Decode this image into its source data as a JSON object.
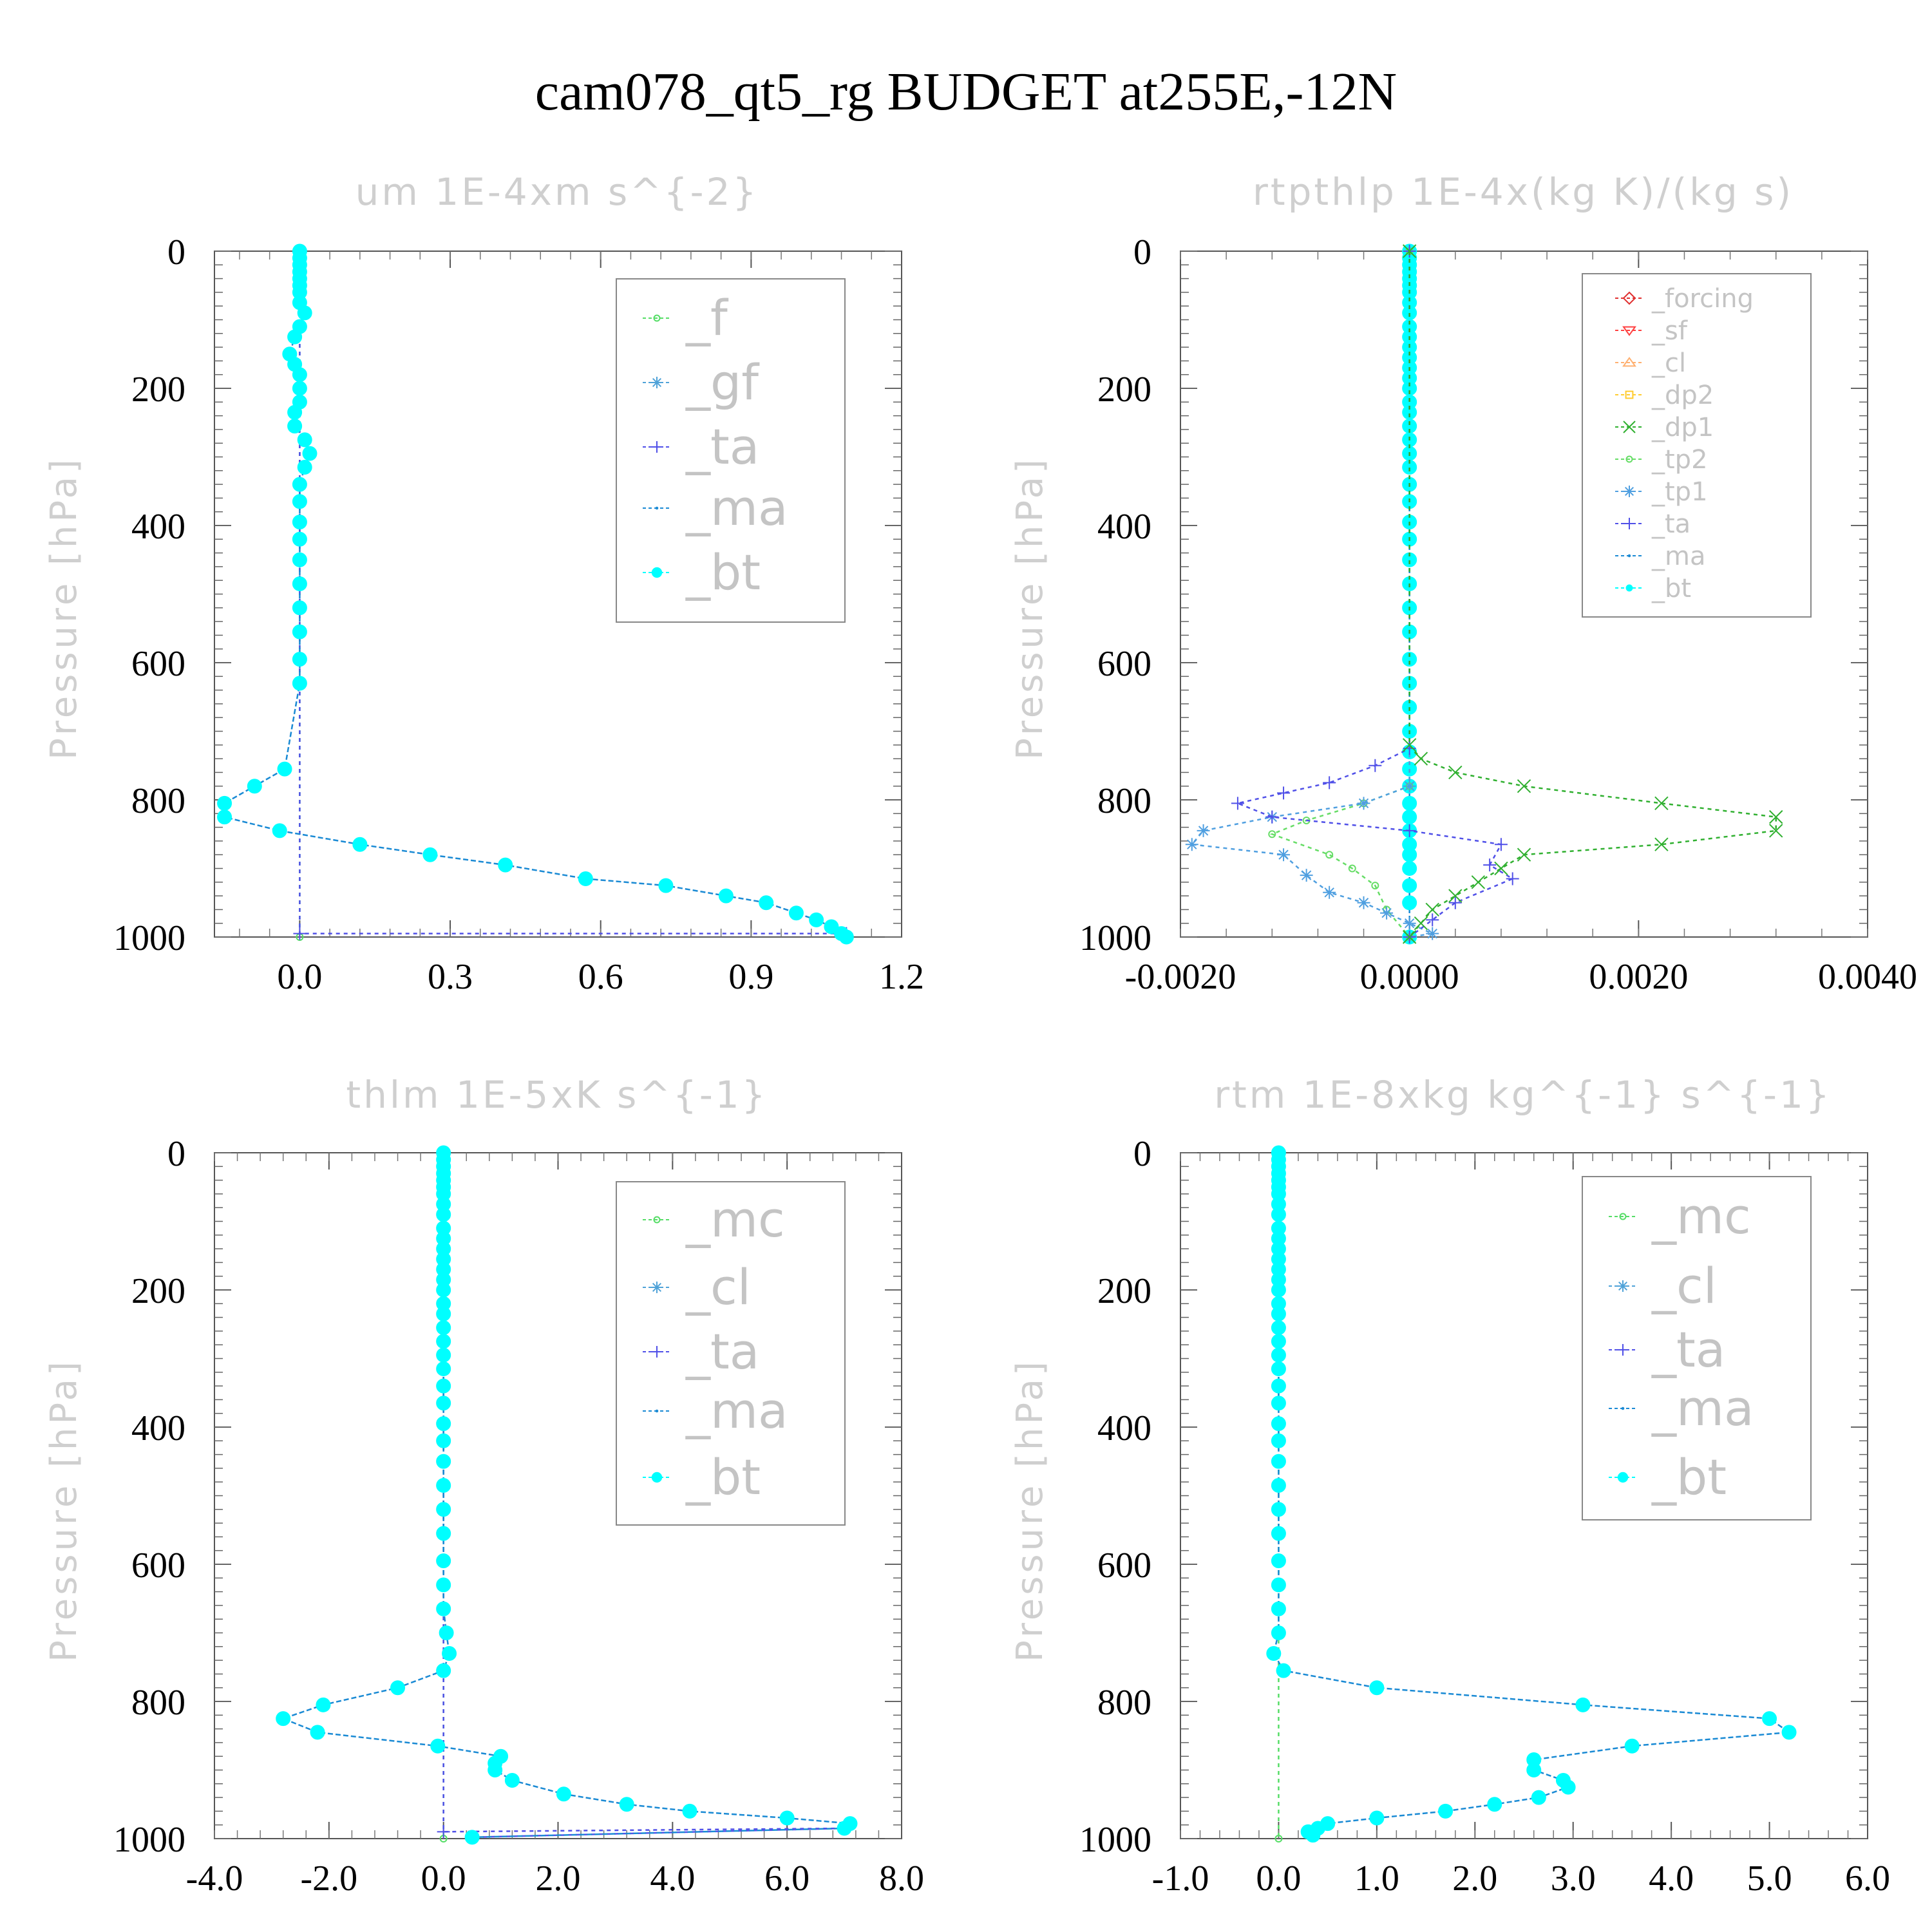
{
  "title": "cam078_qt5_rg  BUDGET at255E,-12N",
  "colors": {
    "_f": "#55dd66",
    "_gf": "#4fa2d8",
    "_ta": "#5050e8",
    "_ma": "#1a8ad4",
    "_bt": "#00ffff",
    "_mc": "#55dd66",
    "_cl": "#4fa2d8",
    "_forcing": "#e03030",
    "_sf": "#ff4040",
    "_cl2": "#ffb070",
    "_dp2": "#ffcc30",
    "_dp1": "#30b030",
    "_tp2": "#66dd66",
    "_tp1": "#4f9fe0"
  },
  "chart_data": [
    {
      "type": "line",
      "title": "um  1E-4xm s^{-2}",
      "xlabel": "",
      "ylabel": "Pressure [hPa]",
      "xlim": [
        -0.17,
        1.2
      ],
      "ylim": [
        0,
        1000
      ],
      "xticks": [
        "0.0",
        "0.3",
        "0.6",
        "0.9",
        "1.2"
      ],
      "xtick_values": [
        0.0,
        0.3,
        0.6,
        0.9,
        1.2
      ],
      "yticks": [
        "0",
        "200",
        "400",
        "600",
        "800",
        "1000"
      ],
      "grid": false,
      "legend_position": "top-right",
      "legend": [
        "_f",
        "_gf",
        "_ta",
        "_ma",
        "_bt"
      ],
      "series": [
        {
          "name": "_bt",
          "marker": "filled-circle",
          "x": [
            0.0,
            0.0,
            0.0,
            0.0,
            0.0,
            0.0,
            0.0,
            0.0,
            0.01,
            0.0,
            -0.01,
            -0.02,
            -0.01,
            0.0,
            0.0,
            0.0,
            -0.01,
            -0.01,
            0.01,
            0.02,
            0.01,
            0.0,
            0.0,
            0.0,
            0.0,
            0.0,
            0.0,
            0.0,
            0.0,
            0.0,
            0.0,
            -0.03,
            -0.09,
            -0.15,
            -0.15,
            -0.04,
            0.12,
            0.26,
            0.41,
            0.57,
            0.73,
            0.85,
            0.93,
            0.99,
            1.03,
            1.06,
            1.08,
            1.09
          ],
          "p": [
            0,
            10,
            20,
            30,
            40,
            50,
            60,
            75,
            90,
            110,
            125,
            150,
            165,
            180,
            200,
            220,
            235,
            255,
            275,
            295,
            315,
            340,
            365,
            395,
            420,
            450,
            485,
            520,
            555,
            595,
            630,
            755,
            780,
            805,
            825,
            845,
            865,
            880,
            895,
            915,
            925,
            940,
            950,
            965,
            975,
            985,
            995,
            1000
          ]
        },
        {
          "name": "_ta",
          "marker": "plus",
          "x": [
            0.0,
            0.0,
            1.09
          ],
          "p": [
            0,
            995,
            995
          ]
        },
        {
          "name": "_f",
          "marker": "open-circle",
          "x": [
            0.0,
            0.0
          ],
          "p": [
            0,
            1000
          ]
        }
      ]
    },
    {
      "type": "line",
      "title": "rtpthlp  1E-4x(kg K)/(kg s)",
      "xlabel": "",
      "ylabel": "Pressure [hPa]",
      "xlim": [
        -0.002,
        0.004
      ],
      "ylim": [
        0,
        1000
      ],
      "xticks": [
        "-0.0020",
        "0.0000",
        "0.0020",
        "0.0040"
      ],
      "xtick_values": [
        -0.002,
        0.0,
        0.002,
        0.004
      ],
      "yticks": [
        "0",
        "200",
        "400",
        "600",
        "800",
        "1000"
      ],
      "grid": false,
      "legend_position": "top-right",
      "legend": [
        "_forcing",
        "_sf",
        "_cl",
        "_dp2",
        "_dp1",
        "_tp2",
        "_tp1",
        "_ta",
        "_ma",
        "_bt"
      ],
      "series": [
        {
          "name": "_dp1",
          "marker": "x",
          "x": [
            0.0,
            0.0,
            0.0001,
            0.0004,
            0.001,
            0.0022,
            0.0032,
            0.0032,
            0.0022,
            0.001,
            0.0008,
            0.0006,
            0.0004,
            0.0002,
            0.0001,
            0.0
          ],
          "p": [
            0,
            720,
            740,
            760,
            780,
            805,
            825,
            845,
            865,
            880,
            900,
            920,
            940,
            960,
            980,
            1000
          ]
        },
        {
          "name": "_ta",
          "marker": "plus",
          "x": [
            0.0,
            0.0,
            -0.0003,
            -0.0007,
            -0.0011,
            -0.0015,
            -0.0012,
            0.0,
            0.0008,
            0.0007,
            0.0009,
            0.0004,
            0.0002,
            0.0
          ],
          "p": [
            0,
            725,
            750,
            775,
            790,
            805,
            825,
            845,
            865,
            895,
            915,
            950,
            975,
            1000
          ]
        },
        {
          "name": "_tp1",
          "marker": "star",
          "x": [
            0.0,
            0.0,
            -0.0004,
            -0.0012,
            -0.0018,
            -0.0019,
            -0.0011,
            -0.0009,
            -0.0007,
            -0.0004,
            -0.0002,
            0.0,
            0.0002,
            0.0
          ],
          "p": [
            0,
            780,
            805,
            825,
            845,
            865,
            880,
            910,
            935,
            950,
            965,
            980,
            995,
            1000
          ]
        },
        {
          "name": "_tp2",
          "marker": "open-circle",
          "x": [
            0.0,
            0.0,
            -0.0004,
            -0.0009,
            -0.0012,
            -0.0007,
            -0.0005,
            -0.0003,
            -0.0002,
            0.0
          ],
          "p": [
            0,
            780,
            805,
            830,
            850,
            880,
            900,
            925,
            960,
            1000
          ]
        },
        {
          "name": "_bt",
          "marker": "filled-circle",
          "x": [
            0.0,
            0.0,
            0.0,
            0.0,
            0.0,
            0.0,
            0.0,
            0.0,
            0.0,
            0.0,
            0.0,
            0.0,
            0.0,
            0.0,
            0.0,
            0.0,
            0.0,
            0.0,
            0.0,
            0.0,
            0.0,
            0.0,
            0.0,
            0.0,
            0.0,
            0.0,
            0.0,
            0.0,
            0.0,
            0.0,
            0.0,
            0.0,
            0.0,
            0.0,
            0.0,
            0.0,
            0.0,
            0.0,
            0.0,
            0.0,
            0.0,
            0.0,
            0.0,
            0.0,
            0.0,
            0.0
          ],
          "p": [
            0,
            10,
            20,
            30,
            40,
            50,
            60,
            75,
            90,
            110,
            125,
            140,
            155,
            170,
            185,
            200,
            220,
            235,
            255,
            275,
            295,
            315,
            340,
            365,
            395,
            420,
            450,
            485,
            520,
            555,
            595,
            630,
            665,
            700,
            730,
            755,
            780,
            805,
            825,
            845,
            865,
            880,
            900,
            925,
            950,
            1000
          ]
        }
      ]
    },
    {
      "type": "line",
      "title": "thlm  1E-5xK s^{-1}",
      "xlabel": "",
      "ylabel": "Pressure [hPa]",
      "xlim": [
        -4.0,
        8.0
      ],
      "ylim": [
        0,
        1000
      ],
      "xticks": [
        "-4.0",
        "-2.0",
        "0.0",
        "2.0",
        "4.0",
        "6.0",
        "8.0"
      ],
      "xtick_values": [
        -4.0,
        -2.0,
        0.0,
        2.0,
        4.0,
        6.0,
        8.0
      ],
      "yticks": [
        "0",
        "200",
        "400",
        "600",
        "800",
        "1000"
      ],
      "grid": false,
      "legend_position": "top-right",
      "legend": [
        "_mc",
        "_cl",
        "_ta",
        "_ma",
        "_bt"
      ],
      "series": [
        {
          "name": "_bt",
          "marker": "filled-circle",
          "x": [
            0.0,
            0.0,
            0.0,
            0.0,
            0.0,
            0.0,
            0.0,
            0.0,
            0.0,
            0.0,
            0.0,
            0.0,
            0.0,
            0.0,
            0.0,
            0.0,
            0.0,
            0.0,
            0.0,
            0.0,
            0.0,
            0.0,
            0.0,
            0.0,
            0.0,
            0.0,
            0.0,
            0.0,
            0.0,
            0.0,
            0.0,
            0.0,
            0.0,
            0.05,
            0.1,
            0.0,
            -0.8,
            -2.1,
            -2.8,
            -2.2,
            -0.1,
            1.0,
            0.9,
            0.9,
            1.2,
            2.1,
            3.2,
            4.3,
            6.0,
            7.1,
            7.0,
            0.5
          ],
          "p": [
            0,
            10,
            20,
            30,
            40,
            50,
            60,
            75,
            90,
            110,
            125,
            140,
            155,
            170,
            185,
            200,
            220,
            235,
            255,
            275,
            295,
            315,
            340,
            365,
            395,
            420,
            450,
            485,
            520,
            555,
            595,
            630,
            665,
            700,
            730,
            755,
            780,
            805,
            825,
            845,
            865,
            880,
            890,
            900,
            915,
            935,
            950,
            960,
            970,
            978,
            985,
            998
          ]
        },
        {
          "name": "_ta",
          "marker": "plus",
          "x": [
            0.0,
            0.0,
            7.0,
            0.5
          ],
          "p": [
            0,
            990,
            985,
            998
          ]
        },
        {
          "name": "_mc",
          "marker": "open-circle",
          "x": [
            0.0,
            0.0
          ],
          "p": [
            0,
            1000
          ]
        }
      ]
    },
    {
      "type": "line",
      "title": "rtm  1E-8xkg kg^{-1} s^{-1}",
      "xlabel": "",
      "ylabel": "Pressure [hPa]",
      "xlim": [
        -1.0,
        6.0
      ],
      "ylim": [
        0,
        1000
      ],
      "xticks": [
        "-1.0",
        "0.0",
        "1.0",
        "2.0",
        "3.0",
        "4.0",
        "5.0",
        "6.0"
      ],
      "xtick_values": [
        -1.0,
        0.0,
        1.0,
        2.0,
        3.0,
        4.0,
        5.0,
        6.0
      ],
      "yticks": [
        "0",
        "200",
        "400",
        "600",
        "800",
        "1000"
      ],
      "grid": false,
      "legend_position": "top-right",
      "legend": [
        "_mc",
        "_cl",
        "_ta",
        "_ma",
        "_bt"
      ],
      "series": [
        {
          "name": "_bt",
          "marker": "filled-circle",
          "x": [
            0.0,
            0.0,
            0.0,
            0.0,
            0.0,
            0.0,
            0.0,
            0.0,
            0.0,
            0.0,
            0.0,
            0.0,
            0.0,
            0.0,
            0.0,
            0.0,
            0.0,
            0.0,
            0.0,
            0.0,
            0.0,
            0.0,
            0.0,
            0.0,
            0.0,
            0.0,
            0.0,
            0.0,
            0.0,
            0.0,
            0.0,
            0.0,
            0.0,
            0.0,
            -0.05,
            0.05,
            1.0,
            3.1,
            5.0,
            5.2,
            3.6,
            2.6,
            2.6,
            2.9,
            2.95,
            2.65,
            2.2,
            1.7,
            1.0,
            0.5,
            0.4,
            0.3,
            0.35
          ],
          "p": [
            0,
            10,
            20,
            30,
            40,
            50,
            60,
            75,
            90,
            110,
            125,
            140,
            155,
            170,
            185,
            200,
            220,
            235,
            255,
            275,
            295,
            315,
            340,
            365,
            395,
            420,
            450,
            485,
            520,
            555,
            595,
            630,
            665,
            700,
            730,
            755,
            780,
            805,
            825,
            845,
            865,
            885,
            900,
            915,
            925,
            940,
            950,
            960,
            970,
            978,
            985,
            990,
            995
          ]
        },
        {
          "name": "_mc",
          "marker": "open-circle",
          "x": [
            0.0,
            0.0
          ],
          "p": [
            0,
            1000
          ]
        }
      ]
    }
  ]
}
